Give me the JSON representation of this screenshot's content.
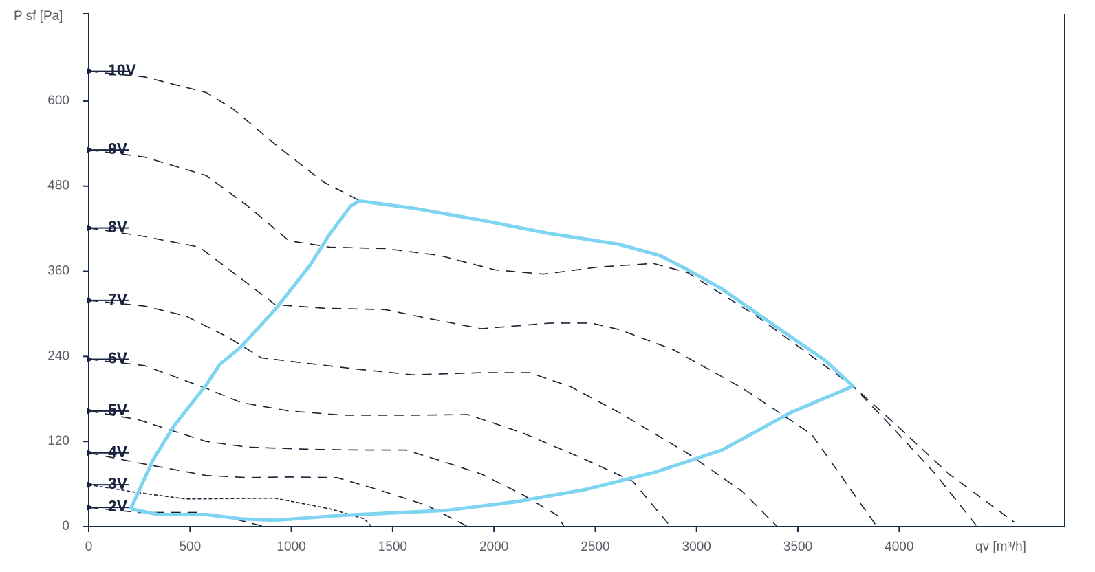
{
  "chart_data": {
    "type": "line",
    "y_label": "P sf [Pa]",
    "x_label": "qv [m³/h]",
    "xlim": [
      0,
      4817
    ],
    "ylim": [
      0,
      723
    ],
    "xticks": [
      0,
      500,
      1000,
      1500,
      2000,
      2500,
      3000,
      3500,
      4000
    ],
    "yticks": [
      0,
      120,
      240,
      360,
      480,
      600
    ],
    "axis_color": "#1a2a4a",
    "series": [
      {
        "name": "10V",
        "color": "#1a2238",
        "style": "dashed",
        "x": [
          0,
          275,
          580,
          716,
          920,
          1157,
          1327,
          1599,
          1938,
          2278,
          2617,
          2821,
          2957,
          3126,
          3296,
          3636,
          3772,
          3975,
          4246,
          4569
        ],
        "values": [
          642,
          634,
          612,
          588,
          539,
          486,
          461,
          449,
          432,
          413,
          398,
          382,
          362,
          335,
          301,
          234,
          198,
          146,
          74,
          6
        ]
      },
      {
        "name": "9V",
        "color": "#1a2238",
        "style": "dashed",
        "x": [
          0,
          275,
          580,
          784,
          988,
          1191,
          1463,
          1735,
          2006,
          2244,
          2515,
          2787,
          2957,
          3296,
          3772,
          3975,
          4179,
          4382
        ],
        "values": [
          531,
          521,
          495,
          452,
          403,
          394,
          392,
          382,
          362,
          356,
          366,
          371,
          358,
          297,
          198,
          137,
          74,
          1
        ]
      },
      {
        "name": "8V",
        "color": "#1a2238",
        "style": "dashed",
        "x": [
          0,
          275,
          546,
          751,
          920,
          1157,
          1463,
          1667,
          1938,
          2278,
          2481,
          2617,
          2889,
          3228,
          3568,
          3890
        ],
        "values": [
          421,
          409,
          394,
          350,
          313,
          308,
          306,
          294,
          279,
          287,
          287,
          278,
          249,
          195,
          130,
          0
        ]
      },
      {
        "name": "7V",
        "color": "#1a2238",
        "style": "dashed",
        "x": [
          0,
          275,
          479,
          682,
          852,
          1056,
          1327,
          1599,
          1938,
          2176,
          2380,
          2617,
          2957,
          3228,
          3398
        ],
        "values": [
          319,
          311,
          297,
          268,
          238,
          231,
          222,
          214,
          217,
          217,
          197,
          161,
          103,
          49,
          0
        ]
      },
      {
        "name": "6V",
        "color": "#1a2238",
        "style": "dashed",
        "x": [
          0,
          275,
          580,
          751,
          988,
          1259,
          1599,
          1871,
          2142,
          2447,
          2685,
          2872
        ],
        "values": [
          236,
          227,
          195,
          175,
          163,
          157,
          157,
          158,
          132,
          95,
          64,
          0
        ]
      },
      {
        "name": "5V",
        "color": "#1a2238",
        "style": "dashed",
        "x": [
          0,
          241,
          580,
          784,
          1090,
          1361,
          1565,
          1735,
          1938,
          2142,
          2312,
          2346
        ],
        "values": [
          163,
          151,
          120,
          112,
          109,
          108,
          108,
          93,
          74,
          45,
          16,
          0
        ]
      },
      {
        "name": "4V",
        "color": "#1a2238",
        "style": "dashed",
        "x": [
          0,
          241,
          580,
          784,
          988,
          1225,
          1429,
          1667,
          1871
        ],
        "values": [
          104,
          90,
          72,
          69,
          70,
          69,
          52,
          30,
          0
        ]
      },
      {
        "name": "3V",
        "color": "#1a2238",
        "style": "dotted",
        "x": [
          0,
          241,
          479,
          920,
          1191,
          1361,
          1395
        ],
        "values": [
          59,
          48,
          39,
          40,
          25,
          11,
          0
        ]
      },
      {
        "name": "2V",
        "color": "#1a2238",
        "style": "dashed",
        "x": [
          0,
          241,
          546,
          716,
          869
        ],
        "values": [
          27,
          20,
          20,
          11,
          0
        ]
      },
      {
        "color": "#7fd4f2",
        "style": "solid",
        "x": [
          207,
          319,
          421,
          580,
          648,
          750,
          920,
          1093,
          1191,
          1293,
          1334,
          1599,
          1938,
          2278,
          2617,
          2821,
          2957,
          3126,
          3296,
          3636,
          3772,
          3466,
          3126,
          2787,
          2447,
          2108,
          1769,
          1259,
          920,
          750,
          580,
          343,
          207
        ],
        "values": [
          25,
          95,
          142,
          200,
          229,
          253,
          306,
          369,
          413,
          452,
          459,
          449,
          432,
          413,
          398,
          382,
          362,
          335,
          301,
          234,
          198,
          161,
          108,
          76,
          52,
          35,
          23,
          16,
          9,
          11,
          17,
          17,
          25
        ]
      }
    ]
  }
}
